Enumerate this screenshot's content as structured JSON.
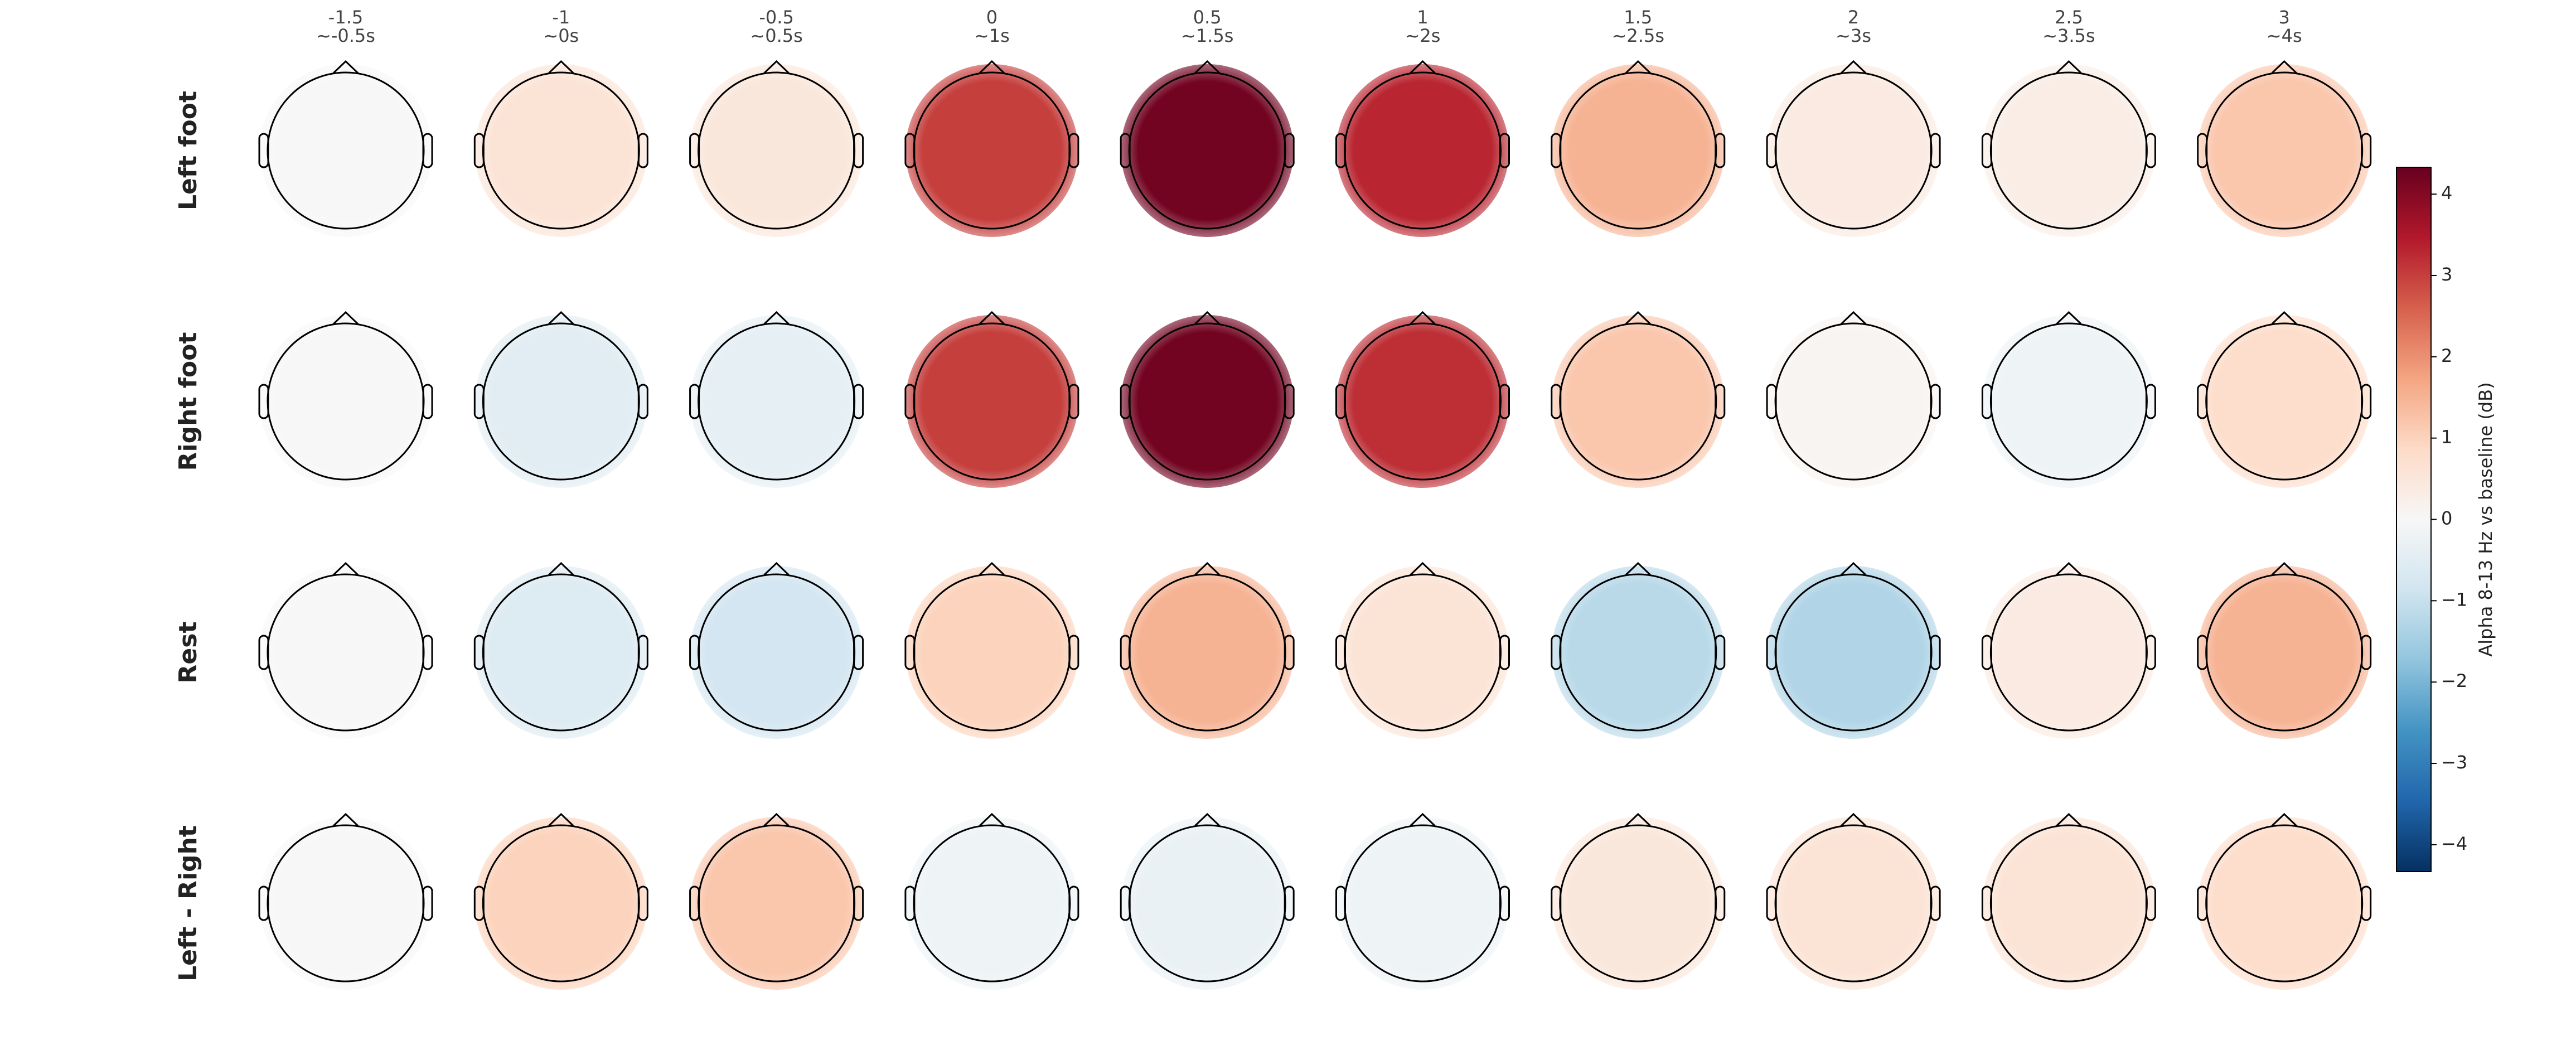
{
  "chart_data": {
    "type": "topomap",
    "categories": [
      "-1.5",
      "-1",
      "-0.5",
      "0",
      "0.5",
      "1",
      "1.5",
      "2",
      "2.5",
      "3"
    ],
    "windows": [
      "~-0.5s",
      "~0s",
      "~0.5s",
      "~1s",
      "~1.5s",
      "~2s",
      "~2.5s",
      "~3s",
      "~3.5s",
      "~4s"
    ],
    "rows": [
      "Left foot",
      "Right foot",
      "Rest",
      "Left - Right"
    ],
    "values": [
      [
        0,
        0.6,
        0.5,
        3,
        4.2,
        3.3,
        1.5,
        0.4,
        0.3,
        1.2
      ],
      [
        0,
        -0.5,
        -0.4,
        3,
        4.2,
        3.2,
        1.2,
        0.1,
        -0.2,
        0.8
      ],
      [
        0,
        -0.6,
        -0.8,
        1.0,
        1.5,
        0.6,
        -1.2,
        -1.3,
        0.4,
        1.5
      ],
      [
        0,
        1.0,
        1.2,
        -0.2,
        -0.3,
        -0.2,
        0.5,
        0.6,
        0.6,
        0.8
      ]
    ],
    "colorbar_label": "Alpha 8-13 Hz vs baseline (dB)",
    "ylim": [
      -4.33,
      4.33
    ],
    "yticks": [
      {
        "value": -4,
        "label": "−4"
      },
      {
        "value": -3,
        "label": "−3"
      },
      {
        "value": -2,
        "label": "−2"
      },
      {
        "value": -1,
        "label": "−1"
      },
      0,
      1,
      2,
      3,
      4
    ],
    "colormap": [
      "#053061",
      "#2166ac",
      "#4393c3",
      "#92c5de",
      "#d1e5f0",
      "#f7f7f7",
      "#fddbc7",
      "#f4a582",
      "#d6604d",
      "#b2182b",
      "#67001f"
    ]
  }
}
